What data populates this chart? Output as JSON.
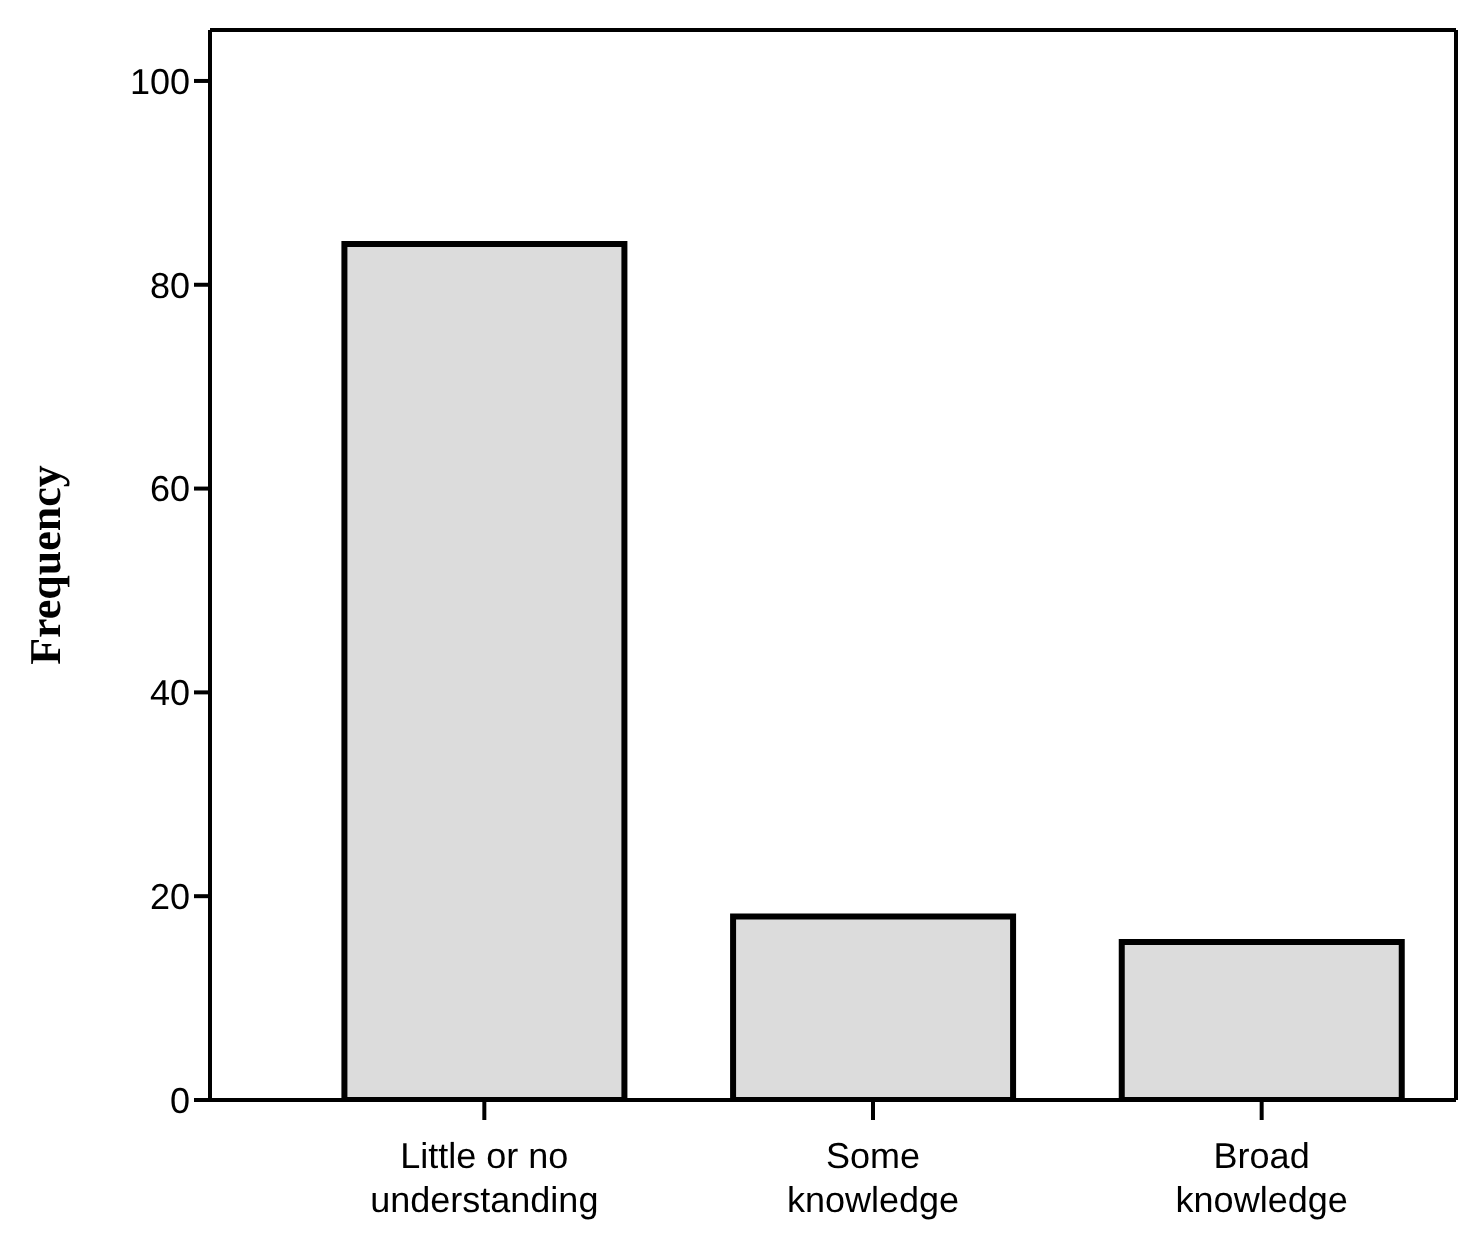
{
  "chart_data": {
    "type": "bar",
    "ylabel": "Frequency",
    "categories": [
      "Little or no understanding",
      "Some knowledge",
      "Broad knowledge"
    ],
    "values": [
      84,
      18,
      15.5
    ],
    "color": "#dcdcdc",
    "ylim": [
      0,
      105
    ],
    "yticks": [
      0,
      20,
      40,
      60,
      80,
      100
    ],
    "grid": false
  }
}
